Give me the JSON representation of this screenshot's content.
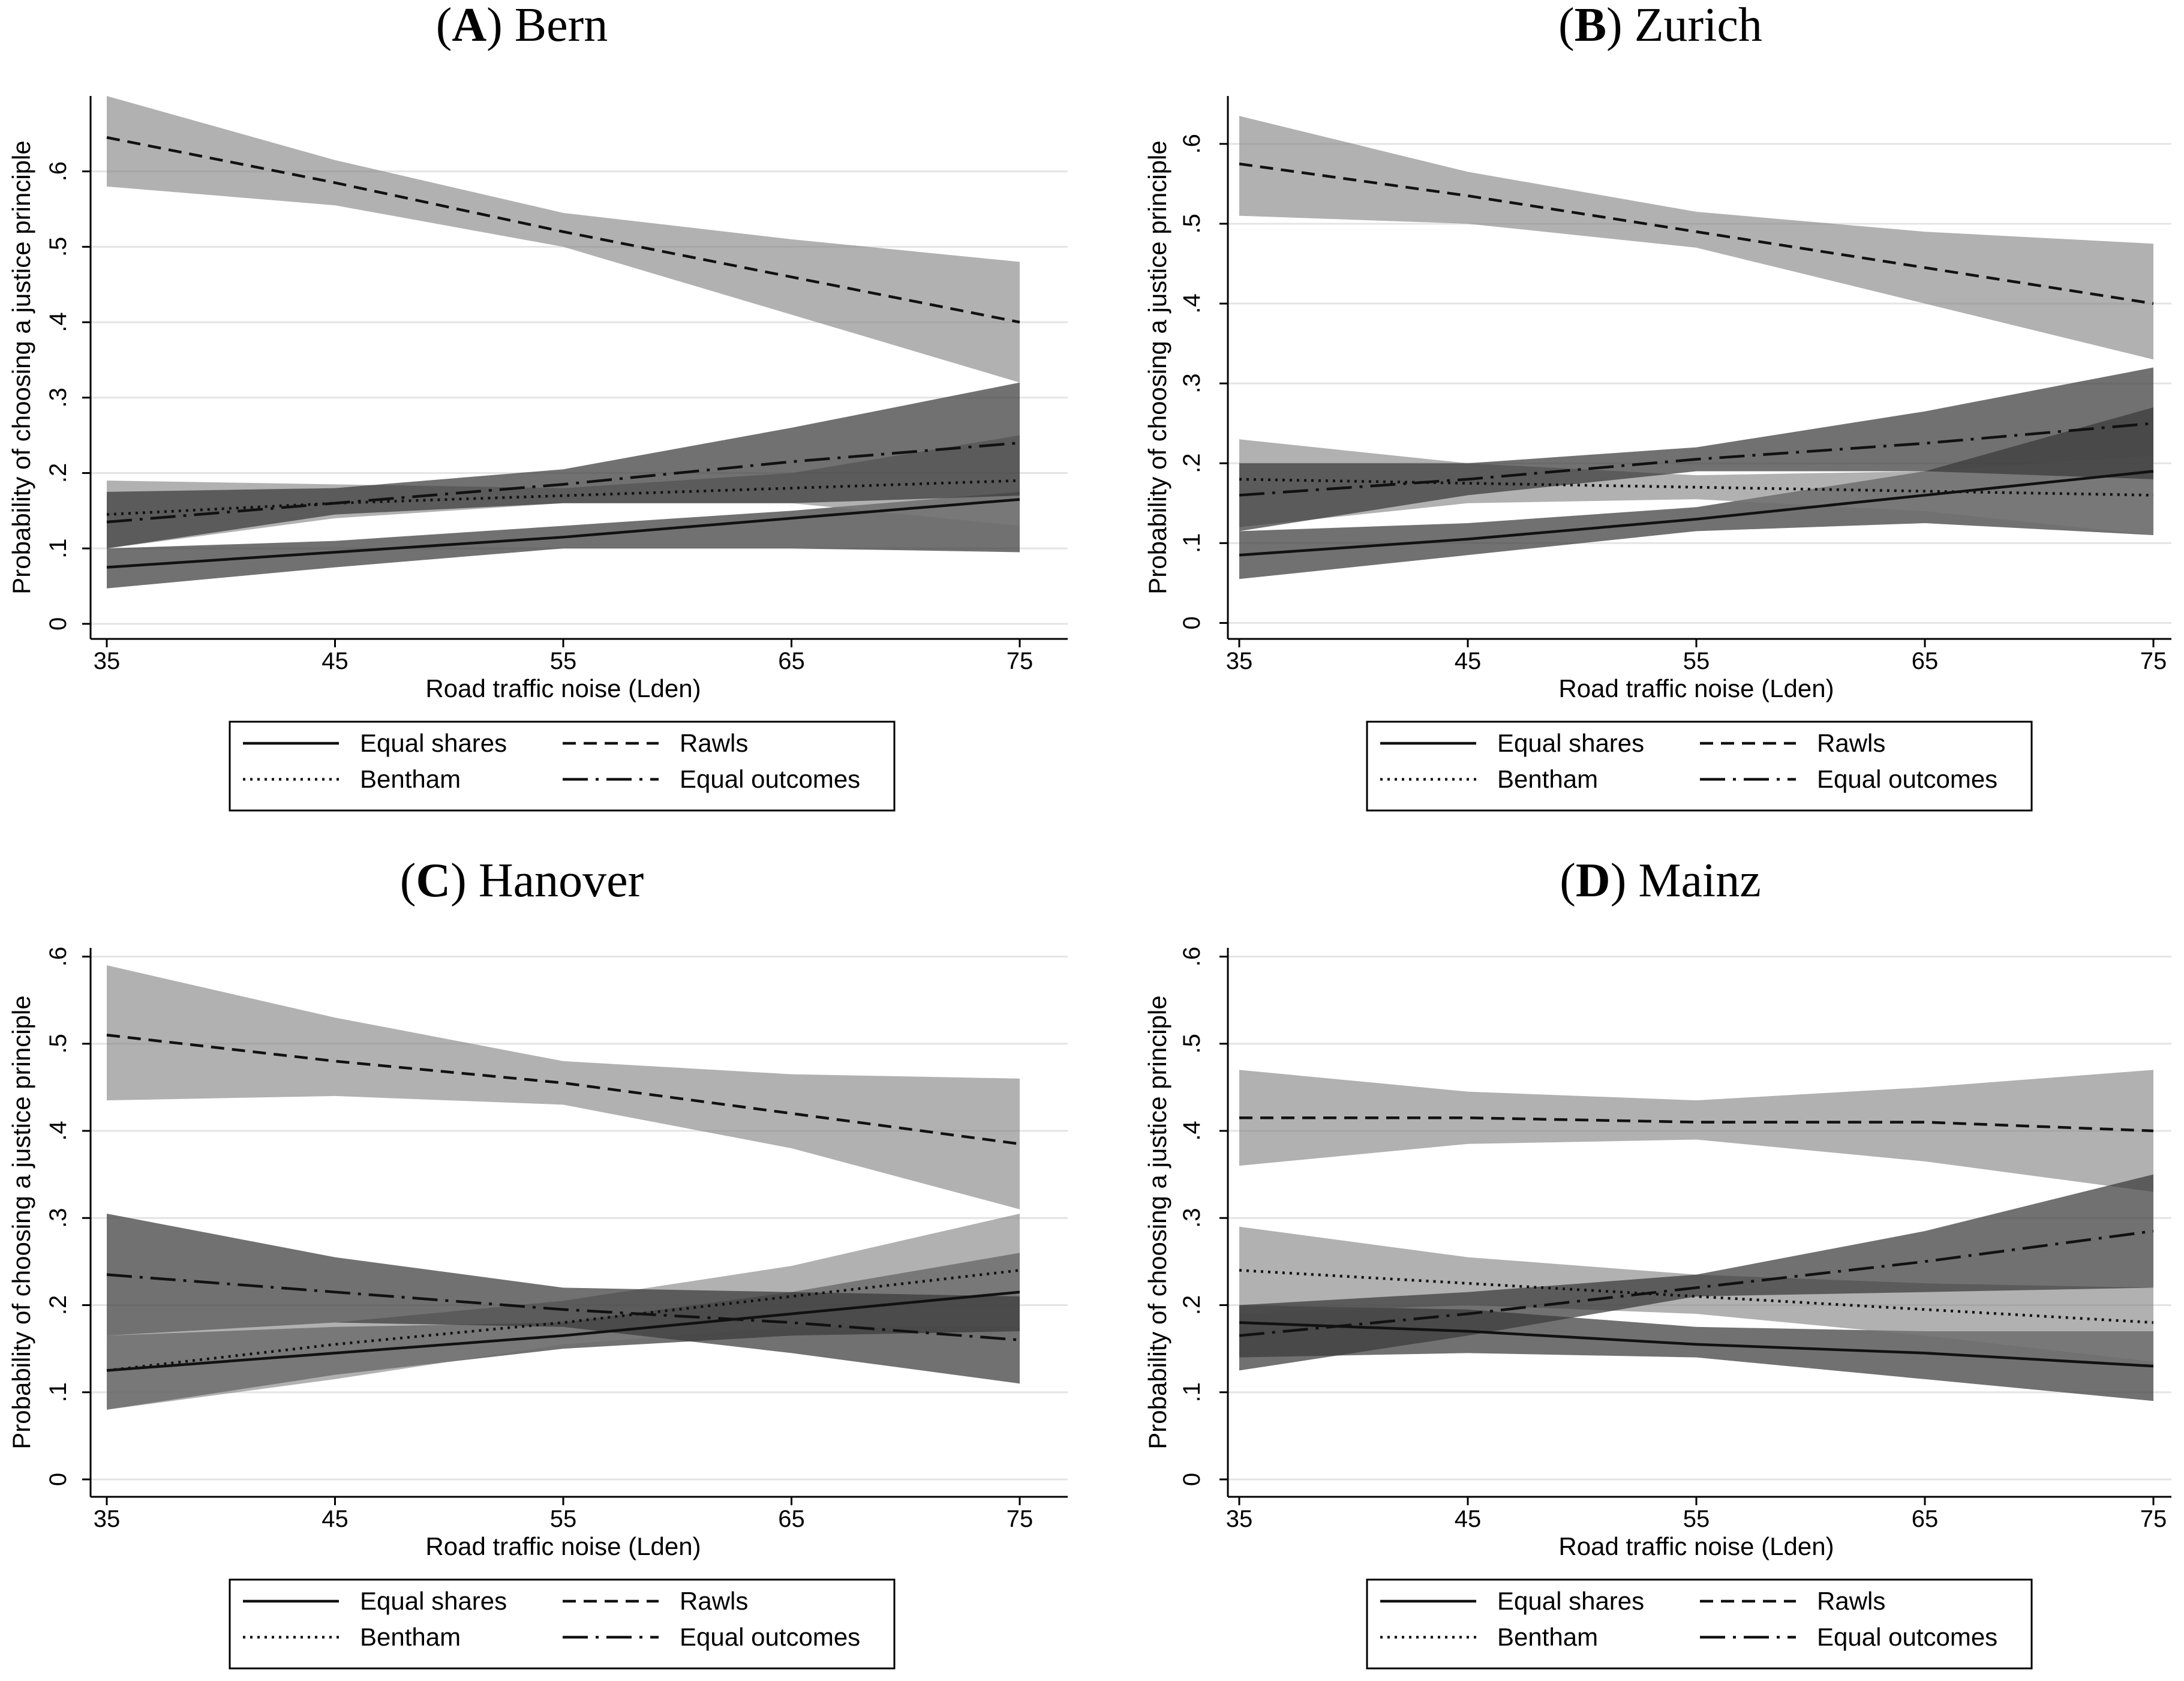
{
  "chart_data": [
    {
      "type": "line",
      "panel_letter": "A",
      "city": "Bern",
      "xlabel": "Road traffic noise (Lden)",
      "ylabel": "Probability of choosing a justice principle",
      "x": [
        35,
        45,
        55,
        65,
        75
      ],
      "x_tick_labels": [
        "35",
        "45",
        "55",
        "65",
        "75"
      ],
      "xlim": [
        35,
        75
      ],
      "y_tick_labels": [
        "0",
        ".1",
        ".2",
        ".3",
        ".4",
        ".5",
        ".6"
      ],
      "y_ticks": [
        0,
        0.1,
        0.2,
        0.3,
        0.4,
        0.5,
        0.6
      ],
      "ylim": [
        -0.02,
        0.7
      ],
      "grid": true,
      "series": [
        {
          "name": "Equal shares",
          "style": "solid",
          "band": "dark",
          "values": [
            0.075,
            0.095,
            0.115,
            0.14,
            0.165
          ],
          "ci_low": [
            0.047,
            0.075,
            0.1,
            0.1,
            0.095
          ],
          "ci_high": [
            0.1,
            0.11,
            0.13,
            0.15,
            0.175
          ]
        },
        {
          "name": "Rawls",
          "style": "dashed",
          "band": "light",
          "values": [
            0.645,
            0.585,
            0.52,
            0.46,
            0.4
          ],
          "ci_low": [
            0.58,
            0.555,
            0.5,
            0.41,
            0.32
          ],
          "ci_high": [
            0.7,
            0.615,
            0.545,
            0.51,
            0.48
          ]
        },
        {
          "name": "Bentham",
          "style": "dotted",
          "band": "light",
          "values": [
            0.145,
            0.16,
            0.17,
            0.18,
            0.19
          ],
          "ci_low": [
            0.1,
            0.14,
            0.16,
            0.16,
            0.13
          ],
          "ci_high": [
            0.19,
            0.185,
            0.18,
            0.2,
            0.25
          ]
        },
        {
          "name": "Equal outcomes",
          "style": "dashdot",
          "band": "dark",
          "values": [
            0.135,
            0.16,
            0.185,
            0.215,
            0.24
          ],
          "ci_low": [
            0.1,
            0.145,
            0.16,
            0.16,
            0.17
          ],
          "ci_high": [
            0.175,
            0.18,
            0.205,
            0.26,
            0.32
          ]
        }
      ]
    },
    {
      "type": "line",
      "panel_letter": "B",
      "city": "Zurich",
      "xlabel": "Road traffic noise (Lden)",
      "ylabel": "Probability of choosing a justice principle",
      "x": [
        35,
        45,
        55,
        65,
        75
      ],
      "x_tick_labels": [
        "35",
        "45",
        "55",
        "65",
        "75"
      ],
      "xlim": [
        35,
        75
      ],
      "y_tick_labels": [
        "0",
        ".1",
        ".2",
        ".3",
        ".4",
        ".5",
        ".6"
      ],
      "y_ticks": [
        0,
        0.1,
        0.2,
        0.3,
        0.4,
        0.5,
        0.6
      ],
      "ylim": [
        -0.02,
        0.66
      ],
      "grid": true,
      "series": [
        {
          "name": "Equal shares",
          "style": "solid",
          "band": "dark",
          "values": [
            0.085,
            0.105,
            0.13,
            0.16,
            0.19
          ],
          "ci_low": [
            0.055,
            0.085,
            0.115,
            0.125,
            0.11
          ],
          "ci_high": [
            0.115,
            0.125,
            0.145,
            0.19,
            0.27
          ]
        },
        {
          "name": "Rawls",
          "style": "dashed",
          "band": "light",
          "values": [
            0.575,
            0.535,
            0.49,
            0.445,
            0.4
          ],
          "ci_low": [
            0.51,
            0.5,
            0.47,
            0.4,
            0.33
          ],
          "ci_high": [
            0.635,
            0.565,
            0.515,
            0.49,
            0.475
          ]
        },
        {
          "name": "Bentham",
          "style": "dotted",
          "band": "light",
          "values": [
            0.18,
            0.175,
            0.17,
            0.165,
            0.16
          ],
          "ci_low": [
            0.12,
            0.15,
            0.155,
            0.14,
            0.11
          ],
          "ci_high": [
            0.23,
            0.2,
            0.185,
            0.19,
            0.21
          ]
        },
        {
          "name": "Equal outcomes",
          "style": "dashdot",
          "band": "dark",
          "values": [
            0.16,
            0.18,
            0.205,
            0.225,
            0.25
          ],
          "ci_low": [
            0.115,
            0.16,
            0.19,
            0.19,
            0.18
          ],
          "ci_high": [
            0.2,
            0.2,
            0.22,
            0.265,
            0.32
          ]
        }
      ]
    },
    {
      "type": "line",
      "panel_letter": "C",
      "city": "Hanover",
      "xlabel": "Road traffic noise (Lden)",
      "ylabel": "Probability of choosing a justice principle",
      "x": [
        35,
        45,
        55,
        65,
        75
      ],
      "x_tick_labels": [
        "35",
        "45",
        "55",
        "65",
        "75"
      ],
      "xlim": [
        35,
        75
      ],
      "y_tick_labels": [
        "0",
        ".1",
        ".2",
        ".3",
        ".4",
        ".5",
        ".6"
      ],
      "y_ticks": [
        0,
        0.1,
        0.2,
        0.3,
        0.4,
        0.5,
        0.6
      ],
      "ylim": [
        -0.02,
        0.61
      ],
      "grid": true,
      "series": [
        {
          "name": "Equal shares",
          "style": "solid",
          "band": "dark",
          "values": [
            0.125,
            0.145,
            0.165,
            0.19,
            0.215
          ],
          "ci_low": [
            0.08,
            0.12,
            0.15,
            0.165,
            0.17
          ],
          "ci_high": [
            0.165,
            0.175,
            0.18,
            0.215,
            0.26
          ]
        },
        {
          "name": "Rawls",
          "style": "dashed",
          "band": "light",
          "values": [
            0.51,
            0.48,
            0.455,
            0.42,
            0.385
          ],
          "ci_low": [
            0.435,
            0.44,
            0.43,
            0.38,
            0.31
          ],
          "ci_high": [
            0.59,
            0.53,
            0.48,
            0.465,
            0.46
          ]
        },
        {
          "name": "Bentham",
          "style": "dotted",
          "band": "light",
          "values": [
            0.125,
            0.155,
            0.18,
            0.21,
            0.24
          ],
          "ci_low": [
            0.08,
            0.115,
            0.155,
            0.175,
            0.175
          ],
          "ci_high": [
            0.165,
            0.18,
            0.205,
            0.245,
            0.305
          ]
        },
        {
          "name": "Equal outcomes",
          "style": "dashdot",
          "band": "dark",
          "values": [
            0.235,
            0.215,
            0.195,
            0.18,
            0.16
          ],
          "ci_low": [
            0.165,
            0.18,
            0.175,
            0.145,
            0.11
          ],
          "ci_high": [
            0.305,
            0.255,
            0.22,
            0.215,
            0.21
          ]
        }
      ]
    },
    {
      "type": "line",
      "panel_letter": "D",
      "city": "Mainz",
      "xlabel": "Road traffic noise (Lden)",
      "ylabel": "Probability of choosing a justice principle",
      "x": [
        35,
        45,
        55,
        65,
        75
      ],
      "x_tick_labels": [
        "35",
        "45",
        "55",
        "65",
        "75"
      ],
      "xlim": [
        35,
        75
      ],
      "y_tick_labels": [
        "0",
        ".1",
        ".2",
        ".3",
        ".4",
        ".5",
        ".6"
      ],
      "y_ticks": [
        0,
        0.1,
        0.2,
        0.3,
        0.4,
        0.5,
        0.6
      ],
      "ylim": [
        -0.02,
        0.61
      ],
      "grid": true,
      "series": [
        {
          "name": "Equal shares",
          "style": "solid",
          "band": "dark",
          "values": [
            0.18,
            0.17,
            0.155,
            0.145,
            0.13
          ],
          "ci_low": [
            0.14,
            0.145,
            0.14,
            0.115,
            0.09
          ],
          "ci_high": [
            0.2,
            0.195,
            0.175,
            0.17,
            0.17
          ]
        },
        {
          "name": "Rawls",
          "style": "dashed",
          "band": "light",
          "values": [
            0.415,
            0.415,
            0.41,
            0.41,
            0.4
          ],
          "ci_low": [
            0.36,
            0.385,
            0.39,
            0.365,
            0.33
          ],
          "ci_high": [
            0.47,
            0.445,
            0.435,
            0.45,
            0.47
          ]
        },
        {
          "name": "Bentham",
          "style": "dotted",
          "band": "light",
          "values": [
            0.24,
            0.225,
            0.21,
            0.195,
            0.18
          ],
          "ci_low": [
            0.19,
            0.2,
            0.19,
            0.165,
            0.135
          ],
          "ci_high": [
            0.29,
            0.255,
            0.235,
            0.225,
            0.22
          ]
        },
        {
          "name": "Equal outcomes",
          "style": "dashdot",
          "band": "dark",
          "values": [
            0.165,
            0.19,
            0.22,
            0.25,
            0.285
          ],
          "ci_low": [
            0.125,
            0.165,
            0.21,
            0.215,
            0.22
          ],
          "ci_high": [
            0.2,
            0.215,
            0.235,
            0.285,
            0.35
          ]
        }
      ]
    }
  ],
  "legend": {
    "entries": [
      {
        "label": "Equal shares",
        "style": "solid"
      },
      {
        "label": "Rawls",
        "style": "dashed"
      },
      {
        "label": "Bentham",
        "style": "dotted"
      },
      {
        "label": "Equal outcomes",
        "style": "dashdot"
      }
    ]
  },
  "colors": {
    "band_light": "#7d7d7d",
    "band_light_opacity": "0.6",
    "band_dark": "#3a3a3a",
    "band_dark_opacity": "0.72",
    "line": "#111111",
    "grid": "#e4e4e4",
    "axis": "#000000"
  }
}
